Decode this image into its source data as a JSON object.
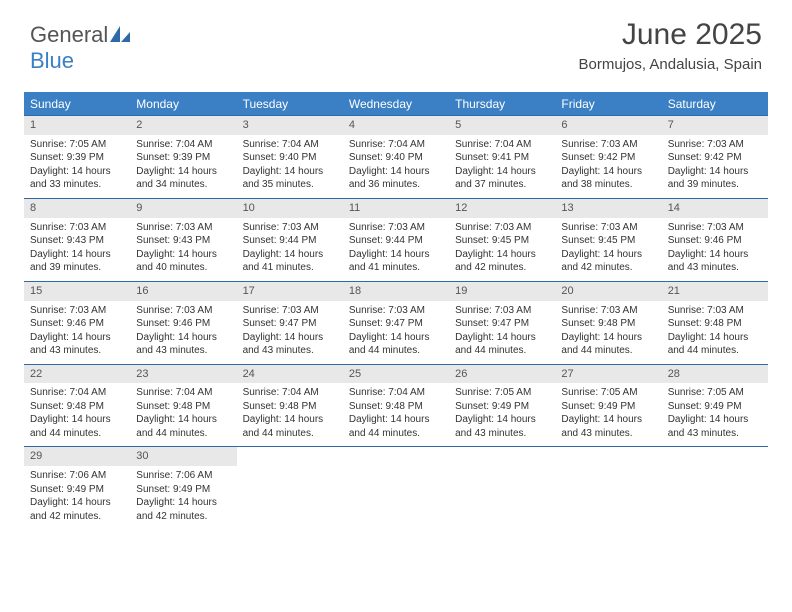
{
  "logo": {
    "text1": "General",
    "text2": "Blue",
    "shape_color": "#2e6aa8"
  },
  "header": {
    "title": "June 2025",
    "location": "Bormujos, Andalusia, Spain"
  },
  "colors": {
    "header_bg": "#3b7fc4",
    "header_text": "#ffffff",
    "daynum_bg": "#e8e8e8",
    "week_border": "#2e6aa8",
    "text": "#333333"
  },
  "day_labels": [
    "Sunday",
    "Monday",
    "Tuesday",
    "Wednesday",
    "Thursday",
    "Friday",
    "Saturday"
  ],
  "field_labels": {
    "sunrise": "Sunrise:",
    "sunset": "Sunset:",
    "daylight": "Daylight:"
  },
  "weeks": [
    [
      {
        "n": "1",
        "sr": "7:05 AM",
        "ss": "9:39 PM",
        "dl": "14 hours and 33 minutes."
      },
      {
        "n": "2",
        "sr": "7:04 AM",
        "ss": "9:39 PM",
        "dl": "14 hours and 34 minutes."
      },
      {
        "n": "3",
        "sr": "7:04 AM",
        "ss": "9:40 PM",
        "dl": "14 hours and 35 minutes."
      },
      {
        "n": "4",
        "sr": "7:04 AM",
        "ss": "9:40 PM",
        "dl": "14 hours and 36 minutes."
      },
      {
        "n": "5",
        "sr": "7:04 AM",
        "ss": "9:41 PM",
        "dl": "14 hours and 37 minutes."
      },
      {
        "n": "6",
        "sr": "7:03 AM",
        "ss": "9:42 PM",
        "dl": "14 hours and 38 minutes."
      },
      {
        "n": "7",
        "sr": "7:03 AM",
        "ss": "9:42 PM",
        "dl": "14 hours and 39 minutes."
      }
    ],
    [
      {
        "n": "8",
        "sr": "7:03 AM",
        "ss": "9:43 PM",
        "dl": "14 hours and 39 minutes."
      },
      {
        "n": "9",
        "sr": "7:03 AM",
        "ss": "9:43 PM",
        "dl": "14 hours and 40 minutes."
      },
      {
        "n": "10",
        "sr": "7:03 AM",
        "ss": "9:44 PM",
        "dl": "14 hours and 41 minutes."
      },
      {
        "n": "11",
        "sr": "7:03 AM",
        "ss": "9:44 PM",
        "dl": "14 hours and 41 minutes."
      },
      {
        "n": "12",
        "sr": "7:03 AM",
        "ss": "9:45 PM",
        "dl": "14 hours and 42 minutes."
      },
      {
        "n": "13",
        "sr": "7:03 AM",
        "ss": "9:45 PM",
        "dl": "14 hours and 42 minutes."
      },
      {
        "n": "14",
        "sr": "7:03 AM",
        "ss": "9:46 PM",
        "dl": "14 hours and 43 minutes."
      }
    ],
    [
      {
        "n": "15",
        "sr": "7:03 AM",
        "ss": "9:46 PM",
        "dl": "14 hours and 43 minutes."
      },
      {
        "n": "16",
        "sr": "7:03 AM",
        "ss": "9:46 PM",
        "dl": "14 hours and 43 minutes."
      },
      {
        "n": "17",
        "sr": "7:03 AM",
        "ss": "9:47 PM",
        "dl": "14 hours and 43 minutes."
      },
      {
        "n": "18",
        "sr": "7:03 AM",
        "ss": "9:47 PM",
        "dl": "14 hours and 44 minutes."
      },
      {
        "n": "19",
        "sr": "7:03 AM",
        "ss": "9:47 PM",
        "dl": "14 hours and 44 minutes."
      },
      {
        "n": "20",
        "sr": "7:03 AM",
        "ss": "9:48 PM",
        "dl": "14 hours and 44 minutes."
      },
      {
        "n": "21",
        "sr": "7:03 AM",
        "ss": "9:48 PM",
        "dl": "14 hours and 44 minutes."
      }
    ],
    [
      {
        "n": "22",
        "sr": "7:04 AM",
        "ss": "9:48 PM",
        "dl": "14 hours and 44 minutes."
      },
      {
        "n": "23",
        "sr": "7:04 AM",
        "ss": "9:48 PM",
        "dl": "14 hours and 44 minutes."
      },
      {
        "n": "24",
        "sr": "7:04 AM",
        "ss": "9:48 PM",
        "dl": "14 hours and 44 minutes."
      },
      {
        "n": "25",
        "sr": "7:04 AM",
        "ss": "9:48 PM",
        "dl": "14 hours and 44 minutes."
      },
      {
        "n": "26",
        "sr": "7:05 AM",
        "ss": "9:49 PM",
        "dl": "14 hours and 43 minutes."
      },
      {
        "n": "27",
        "sr": "7:05 AM",
        "ss": "9:49 PM",
        "dl": "14 hours and 43 minutes."
      },
      {
        "n": "28",
        "sr": "7:05 AM",
        "ss": "9:49 PM",
        "dl": "14 hours and 43 minutes."
      }
    ],
    [
      {
        "n": "29",
        "sr": "7:06 AM",
        "ss": "9:49 PM",
        "dl": "14 hours and 42 minutes."
      },
      {
        "n": "30",
        "sr": "7:06 AM",
        "ss": "9:49 PM",
        "dl": "14 hours and 42 minutes."
      },
      null,
      null,
      null,
      null,
      null
    ]
  ]
}
